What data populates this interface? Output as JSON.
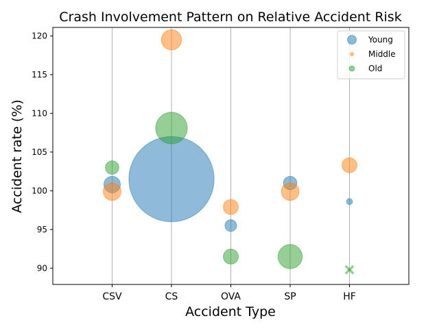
{
  "chart_data": {
    "type": "scatter",
    "title": "Crash Involvement Pattern on  Relative Accident Risk",
    "xlabel": "Accident Type",
    "ylabel": "Accident rate (%)",
    "categories": [
      "CSV",
      "CS",
      "OVA",
      "SP",
      "HF"
    ],
    "ylim": [
      87.9,
      121.1
    ],
    "yticks": [
      90,
      95,
      100,
      105,
      110,
      115,
      120
    ],
    "grid": "vertical",
    "legend_position": "top-right",
    "series": [
      {
        "name": "Young",
        "color": "#1f77b4",
        "points": [
          {
            "x": "CSV",
            "y": 100.8,
            "size": 300
          },
          {
            "x": "CS",
            "y": 101.5,
            "size": 8000
          },
          {
            "x": "OVA",
            "y": 95.5,
            "size": 150
          },
          {
            "x": "SP",
            "y": 101.0,
            "size": 200
          },
          {
            "x": "HF",
            "y": 98.6,
            "size": 40
          }
        ]
      },
      {
        "name": "Middle",
        "color": "#ff7f0e",
        "points": [
          {
            "x": "CSV",
            "y": 99.9,
            "size": 350
          },
          {
            "x": "CS",
            "y": 119.5,
            "size": 450
          },
          {
            "x": "OVA",
            "y": 97.9,
            "size": 250
          },
          {
            "x": "SP",
            "y": 99.9,
            "size": 350
          },
          {
            "x": "HF",
            "y": 103.3,
            "size": 250
          }
        ]
      },
      {
        "name": "Old",
        "color": "#2ca02c",
        "points": [
          {
            "x": "CSV",
            "y": 103.0,
            "size": 200
          },
          {
            "x": "CS",
            "y": 108.1,
            "size": 1100
          },
          {
            "x": "OVA",
            "y": 91.5,
            "size": 250
          },
          {
            "x": "SP",
            "y": 91.5,
            "size": 650
          },
          {
            "x": "HF",
            "y": 89.8,
            "size": 120,
            "marker": "x"
          }
        ]
      }
    ]
  }
}
